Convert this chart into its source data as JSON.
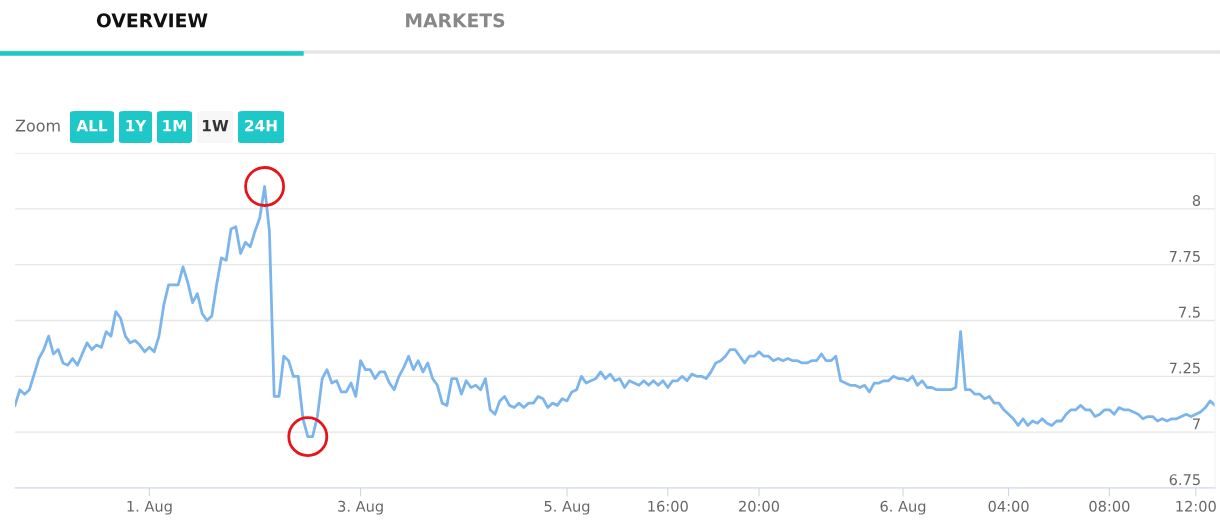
{
  "chart_data": {
    "type": "line",
    "annotations": [
      "OVERVIEW",
      "MARKETS",
      "Zoom",
      "ALL",
      "1Y",
      "1M",
      "1W",
      "24H"
    ],
    "categories": [
      null,
      null,
      null,
      null,
      null,
      null,
      null,
      null,
      null,
      null,
      null,
      null,
      null,
      null,
      null,
      null,
      null,
      null,
      null,
      null,
      null,
      null,
      null,
      null,
      null,
      null,
      null,
      null,
      "1. Aug",
      null,
      null,
      null,
      null,
      null,
      null,
      null,
      null,
      null,
      null,
      null,
      null,
      null,
      null,
      null,
      null,
      null,
      null,
      null,
      null,
      null,
      null,
      null,
      null,
      null,
      null,
      null,
      null,
      null,
      null,
      null,
      null,
      null,
      null,
      null,
      null,
      null,
      null,
      null,
      null,
      null,
      null,
      null,
      "3. Aug",
      null,
      null,
      null,
      null,
      null,
      null,
      null,
      null,
      null,
      null,
      null,
      null,
      null,
      null,
      null,
      null,
      null,
      null,
      null,
      null,
      null,
      null,
      null,
      null,
      null,
      null,
      null,
      null,
      null,
      null,
      null,
      null,
      null,
      null,
      null,
      null,
      null,
      null,
      null,
      null,
      null,
      null,
      "5. Aug",
      null,
      null,
      null,
      null,
      null,
      null,
      null,
      null,
      null,
      null,
      null,
      null,
      null,
      null,
      null,
      null,
      null,
      null,
      null,
      null,
      "16:00",
      null,
      null,
      null,
      null,
      null,
      null,
      null,
      null,
      null,
      null,
      null,
      null,
      null,
      null,
      null,
      null,
      null,
      null,
      "20:00",
      null,
      null,
      null,
      null,
      null,
      null,
      null,
      null,
      null,
      null,
      null,
      null,
      null,
      null,
      null,
      null,
      null,
      null,
      null,
      null,
      null,
      null,
      null,
      null,
      null,
      null,
      null,
      null,
      null,
      "6. Aug",
      null,
      null,
      null,
      null,
      null,
      null,
      null,
      null,
      null,
      null,
      null,
      null,
      null,
      null,
      null,
      null,
      null,
      null,
      null,
      null,
      null,
      "04:00",
      null,
      null,
      null,
      null,
      null,
      null,
      null,
      null,
      null,
      null,
      null,
      null,
      null,
      null,
      null,
      null,
      null,
      null,
      null,
      null,
      "08:00",
      null,
      null,
      null,
      null,
      null,
      null,
      null,
      null,
      null,
      null,
      null,
      null,
      null,
      null,
      null,
      null,
      null,
      "12:00",
      null,
      null,
      null,
      null
    ],
    "series": [
      {
        "color": "#7cb5ec",
        "values": [
          7.12,
          7.19,
          7.17,
          7.19,
          7.26,
          7.33,
          7.37,
          7.43,
          7.35,
          7.37,
          7.31,
          7.3,
          7.33,
          7.3,
          7.35,
          7.4,
          7.37,
          7.39,
          7.38,
          7.45,
          7.43,
          7.54,
          7.51,
          7.43,
          7.4,
          7.41,
          7.39,
          7.36,
          7.38,
          7.36,
          7.43,
          7.57,
          7.66,
          7.66,
          7.66,
          7.74,
          7.67,
          7.58,
          7.62,
          7.53,
          7.5,
          7.52,
          7.66,
          7.78,
          7.77,
          7.91,
          7.92,
          7.8,
          7.85,
          7.83,
          7.9,
          7.96,
          8.1,
          7.9,
          7.16,
          7.16,
          7.34,
          7.32,
          7.25,
          7.25,
          7.06,
          6.98,
          6.98,
          7.07,
          7.24,
          7.28,
          7.22,
          7.23,
          7.18,
          7.18,
          7.22,
          7.16,
          7.32,
          7.28,
          7.28,
          7.24,
          7.27,
          7.27,
          7.22,
          7.19,
          7.25,
          7.29,
          7.34,
          7.28,
          7.32,
          7.27,
          7.31,
          7.24,
          7.21,
          7.13,
          7.12,
          7.24,
          7.24,
          7.17,
          7.23,
          7.2,
          7.21,
          7.19,
          7.24,
          7.1,
          7.08,
          7.14,
          7.16,
          7.12,
          7.11,
          7.13,
          7.11,
          7.13,
          7.13,
          7.16,
          7.15,
          7.11,
          7.13,
          7.12,
          7.15,
          7.14,
          7.18,
          7.19,
          7.25,
          7.22,
          7.23,
          7.24,
          7.27,
          7.24,
          7.26,
          7.23,
          7.24,
          7.2,
          7.23,
          7.22,
          7.21,
          7.23,
          7.21,
          7.23,
          7.21,
          7.23,
          7.2,
          7.23,
          7.23,
          7.25,
          7.23,
          7.26,
          7.25,
          7.25,
          7.24,
          7.27,
          7.31,
          7.32,
          7.34,
          7.37,
          7.37,
          7.34,
          7.31,
          7.34,
          7.34,
          7.36,
          7.34,
          7.34,
          7.32,
          7.33,
          7.32,
          7.33,
          7.32,
          7.32,
          7.31,
          7.31,
          7.32,
          7.32,
          7.35,
          7.32,
          7.32,
          7.34,
          7.23,
          7.22,
          7.21,
          7.21,
          7.2,
          7.21,
          7.18,
          7.22,
          7.22,
          7.23,
          7.23,
          7.25,
          7.24,
          7.24,
          7.23,
          7.25,
          7.21,
          7.23,
          7.2,
          7.2,
          7.19,
          7.19,
          7.19,
          7.19,
          7.2,
          7.45,
          7.19,
          7.19,
          7.17,
          7.17,
          7.15,
          7.16,
          7.13,
          7.13,
          7.1,
          7.08,
          7.06,
          7.03,
          7.06,
          7.03,
          7.05,
          7.04,
          7.06,
          7.04,
          7.03,
          7.05,
          7.05,
          7.08,
          7.1,
          7.1,
          7.12,
          7.1,
          7.1,
          7.07,
          7.08,
          7.1,
          7.1,
          7.08,
          7.11,
          7.1,
          7.1,
          7.09,
          7.08,
          7.06,
          7.07,
          7.07,
          7.05,
          7.06,
          7.05,
          7.06,
          7.06,
          7.07,
          7.08,
          7.07,
          7.08,
          7.09,
          7.11,
          7.14,
          7.12
        ]
      }
    ],
    "ylim": [
      6.75,
      8.25
    ],
    "yticks": [
      6.75,
      7,
      7.25,
      7.5,
      7.75,
      8,
      {
        "value": 8.25,
        "label": null
      }
    ],
    "grid": "y",
    "marker": "none",
    "line_style": "solid"
  }
}
